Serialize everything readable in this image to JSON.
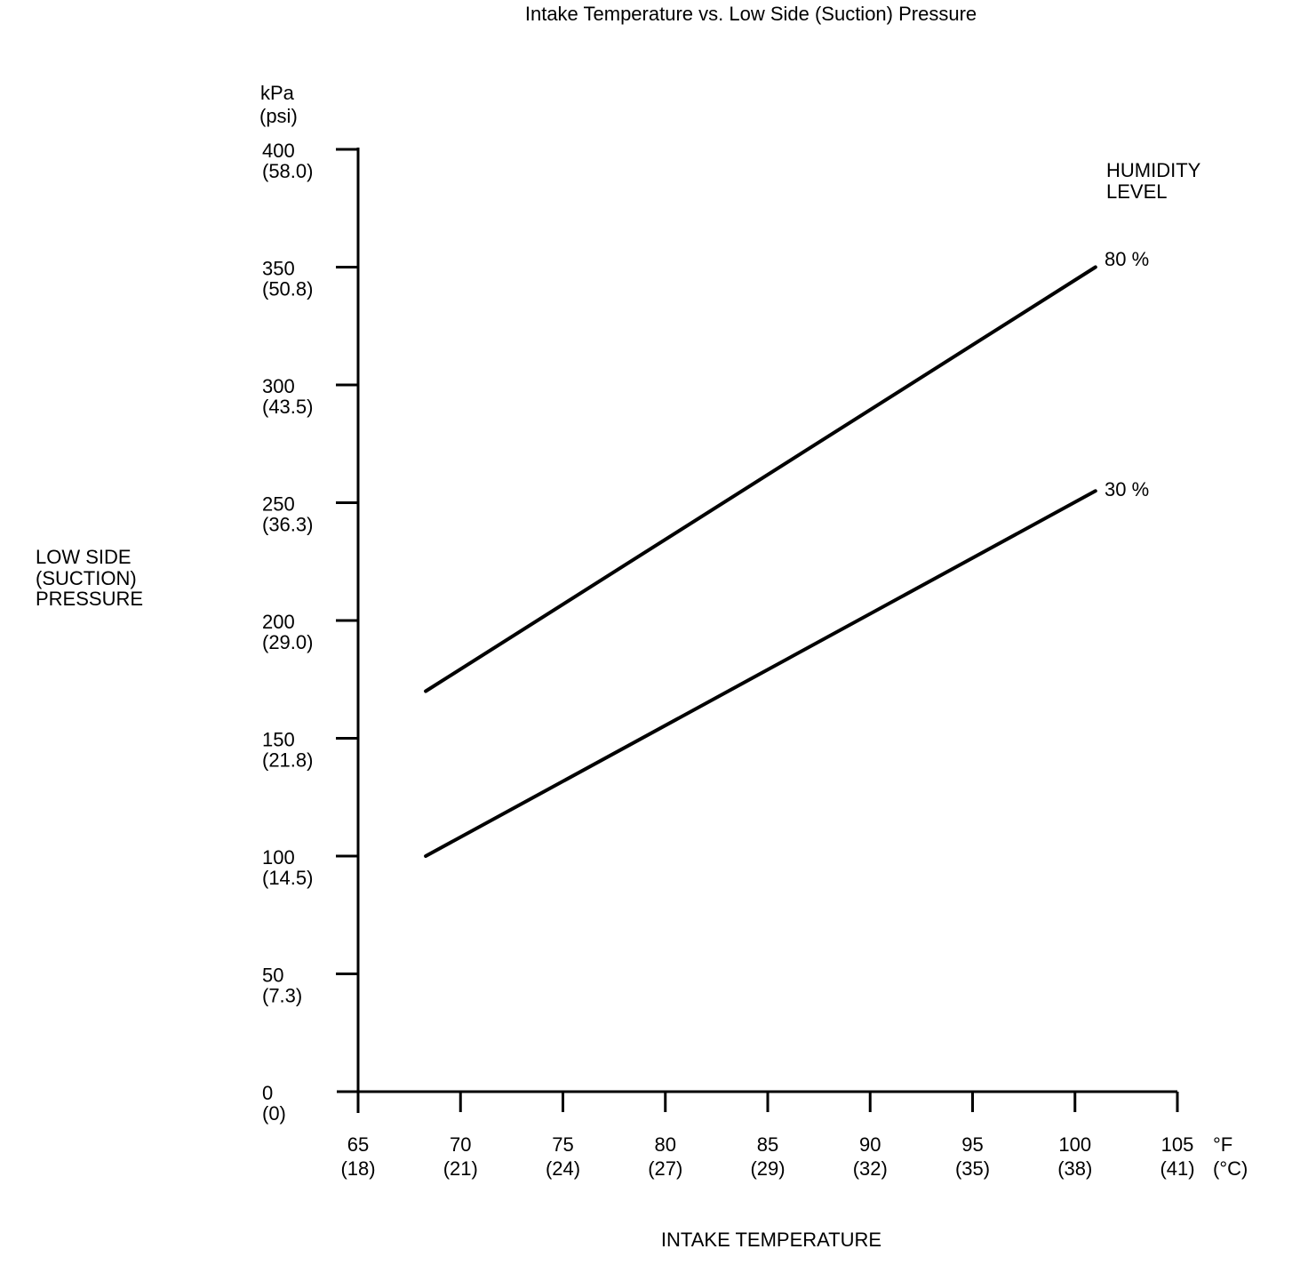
{
  "chart_data": {
    "type": "line",
    "title": "Intake Temperature vs. Low Side (Suction) Pressure",
    "x_axis": {
      "label": "INTAKE TEMPERATURE",
      "unit_primary": "°F",
      "unit_secondary": "(°C)",
      "range_f": [
        65,
        105
      ],
      "ticks": [
        {
          "f": 65,
          "c": 18
        },
        {
          "f": 70,
          "c": 21
        },
        {
          "f": 75,
          "c": 24
        },
        {
          "f": 80,
          "c": 27
        },
        {
          "f": 85,
          "c": 29
        },
        {
          "f": 90,
          "c": 32
        },
        {
          "f": 95,
          "c": 35
        },
        {
          "f": 100,
          "c": 38
        },
        {
          "f": 105,
          "c": 41
        }
      ]
    },
    "y_axis": {
      "label_lines": [
        "LOW SIDE",
        "(SUCTION)",
        "PRESSURE"
      ],
      "unit_primary": "kPa",
      "unit_secondary": "(psi)",
      "range_kpa": [
        0,
        400
      ],
      "ticks": [
        {
          "kpa": 400,
          "psi": "58.0"
        },
        {
          "kpa": 350,
          "psi": "50.8"
        },
        {
          "kpa": 300,
          "psi": "43.5"
        },
        {
          "kpa": 250,
          "psi": "36.3"
        },
        {
          "kpa": 200,
          "psi": "29.0"
        },
        {
          "kpa": 150,
          "psi": "21.8"
        },
        {
          "kpa": 100,
          "psi": "14.5"
        },
        {
          "kpa": 50,
          "psi": "7.3"
        },
        {
          "kpa": 0,
          "psi": "0"
        }
      ]
    },
    "legend": {
      "title_lines": [
        "HUMIDITY",
        "LEVEL"
      ],
      "position": "top-right"
    },
    "series": [
      {
        "name": "80 %",
        "humidity_percent": 80,
        "points_f_kpa": [
          [
            68.3,
            170
          ],
          [
            101,
            350
          ]
        ]
      },
      {
        "name": "30 %",
        "humidity_percent": 30,
        "points_f_kpa": [
          [
            68.3,
            100
          ],
          [
            101,
            255
          ]
        ]
      }
    ],
    "grid": false,
    "colors": {
      "line": "#000000",
      "text": "#000000",
      "background": "#ffffff"
    }
  }
}
